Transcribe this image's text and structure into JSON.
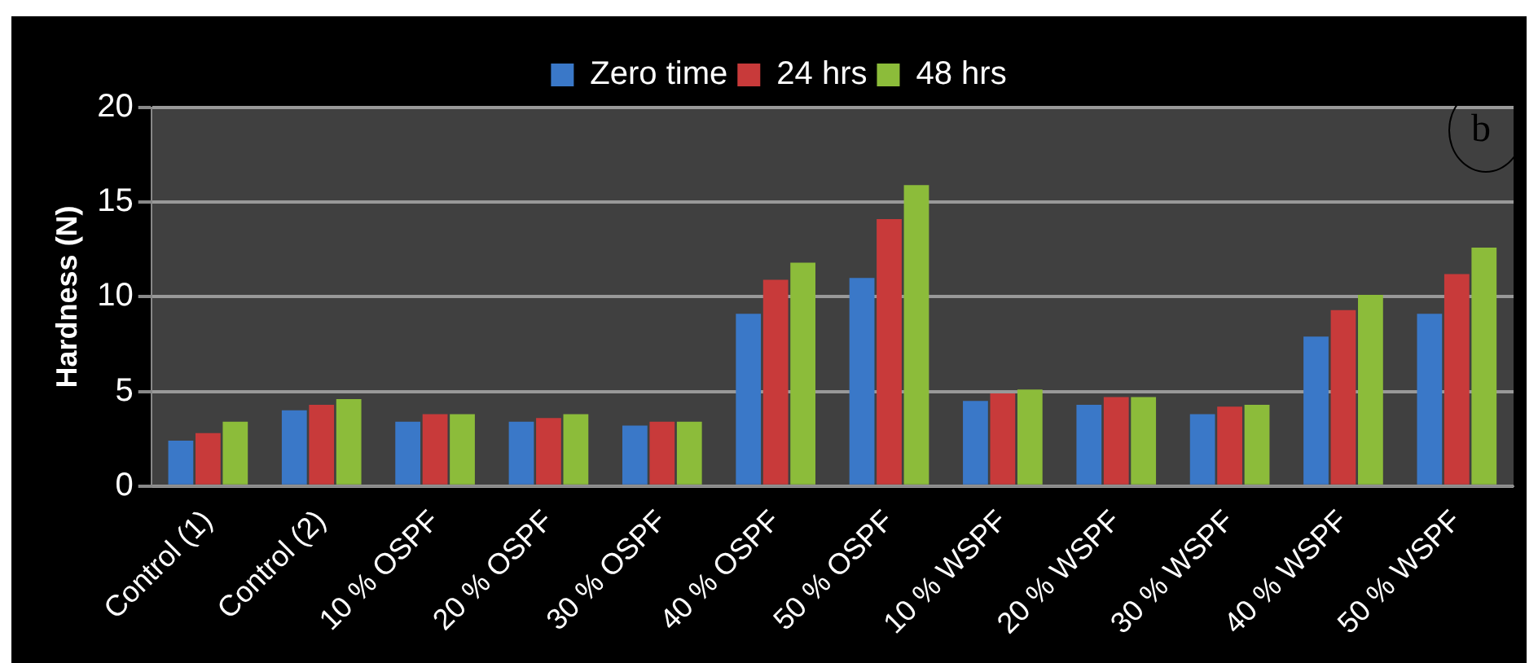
{
  "chart_data": {
    "type": "bar",
    "ylabel": "Hardness (N)",
    "annotations": [
      "b"
    ],
    "categories": [
      "Control (1)",
      "Control (2)",
      "10 % OSPF",
      "20 % OSPF",
      "30 % OSPF",
      "40 % OSPF",
      "50 % OSPF",
      "10 % WSPF",
      "20 % WSPF",
      "30 % WSPF",
      "40 % WSPF",
      "50 % WSPF"
    ],
    "series": [
      {
        "name": "Zero time",
        "color": "#3a78c8",
        "values": [
          2.4,
          4.0,
          3.4,
          3.4,
          3.2,
          9.1,
          11.0,
          4.5,
          4.3,
          3.8,
          7.9,
          9.1
        ]
      },
      {
        "name": "24 hrs",
        "color": "#c83a3a",
        "values": [
          2.8,
          4.3,
          3.8,
          3.6,
          3.4,
          10.9,
          14.1,
          4.9,
          4.7,
          4.2,
          9.3,
          11.2
        ]
      },
      {
        "name": "48 hrs",
        "color": "#8cbc3a",
        "values": [
          3.4,
          4.6,
          3.8,
          3.8,
          3.4,
          11.8,
          15.9,
          5.1,
          4.7,
          4.3,
          10.1,
          12.6
        ]
      }
    ],
    "ylim": [
      0,
      20
    ],
    "yticks": [
      0,
      5,
      10,
      15,
      20
    ],
    "grid": "y",
    "legend": "top"
  }
}
